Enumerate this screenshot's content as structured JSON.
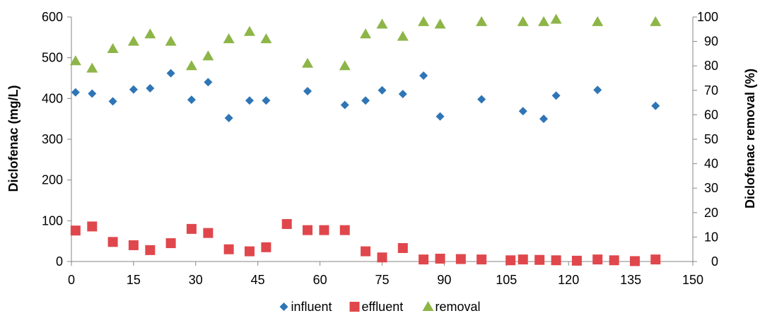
{
  "chart_data": {
    "type": "scatter",
    "xlabel": "",
    "ylabel": "Diclofenac (mg/L)",
    "y2label": "Diclofenac removal (%)",
    "xlim": [
      0,
      150
    ],
    "ylim": [
      0,
      600
    ],
    "y2lim": [
      0,
      100
    ],
    "xticks": [
      0,
      15,
      30,
      45,
      60,
      75,
      90,
      105,
      120,
      135,
      150
    ],
    "yticks": [
      0,
      100,
      200,
      300,
      400,
      500,
      600
    ],
    "y2ticks": [
      0,
      10,
      20,
      30,
      40,
      50,
      60,
      70,
      80,
      90,
      100
    ],
    "grid": false,
    "legend": "bottom",
    "series": [
      {
        "name": "influent",
        "axis": "left",
        "marker": "diamond",
        "color": "#2E75B6",
        "points": [
          [
            1,
            415
          ],
          [
            5,
            412
          ],
          [
            10,
            393
          ],
          [
            15,
            422
          ],
          [
            19,
            425
          ],
          [
            24,
            462
          ],
          [
            29,
            397
          ],
          [
            33,
            440
          ],
          [
            38,
            352
          ],
          [
            43,
            395
          ],
          [
            47,
            395
          ],
          [
            57,
            418
          ],
          [
            66,
            384
          ],
          [
            71,
            395
          ],
          [
            75,
            420
          ],
          [
            80,
            411
          ],
          [
            85,
            456
          ],
          [
            89,
            356
          ],
          [
            99,
            398
          ],
          [
            109,
            369
          ],
          [
            114,
            350
          ],
          [
            117,
            407
          ],
          [
            127,
            421
          ],
          [
            141,
            382
          ]
        ]
      },
      {
        "name": "effluent",
        "axis": "left",
        "marker": "square",
        "color": "#E0474C",
        "points": [
          [
            1,
            76
          ],
          [
            5,
            86
          ],
          [
            10,
            48
          ],
          [
            15,
            40
          ],
          [
            19,
            28
          ],
          [
            24,
            45
          ],
          [
            29,
            80
          ],
          [
            33,
            70
          ],
          [
            38,
            30
          ],
          [
            43,
            25
          ],
          [
            47,
            35
          ],
          [
            52,
            92
          ],
          [
            57,
            77
          ],
          [
            61,
            77
          ],
          [
            66,
            77
          ],
          [
            71,
            25
          ],
          [
            75,
            10
          ],
          [
            80,
            33
          ],
          [
            85,
            5
          ],
          [
            89,
            7
          ],
          [
            94,
            6
          ],
          [
            99,
            5
          ],
          [
            106,
            3
          ],
          [
            109,
            5
          ],
          [
            113,
            4
          ],
          [
            117,
            3
          ],
          [
            122,
            2
          ],
          [
            127,
            5
          ],
          [
            131,
            3
          ],
          [
            136,
            1
          ],
          [
            141,
            5
          ]
        ]
      },
      {
        "name": "removal",
        "axis": "right",
        "marker": "triangle",
        "color": "#8DB547",
        "points": [
          [
            1,
            82
          ],
          [
            5,
            79
          ],
          [
            10,
            87
          ],
          [
            15,
            90
          ],
          [
            19,
            93
          ],
          [
            24,
            90
          ],
          [
            29,
            80
          ],
          [
            33,
            84
          ],
          [
            38,
            91
          ],
          [
            43,
            94
          ],
          [
            47,
            91
          ],
          [
            57,
            81
          ],
          [
            66,
            80
          ],
          [
            71,
            93
          ],
          [
            75,
            97
          ],
          [
            80,
            92
          ],
          [
            85,
            98
          ],
          [
            89,
            97
          ],
          [
            99,
            98
          ],
          [
            109,
            98
          ],
          [
            114,
            98
          ],
          [
            117,
            99
          ],
          [
            127,
            98
          ],
          [
            141,
            98
          ]
        ]
      }
    ]
  }
}
